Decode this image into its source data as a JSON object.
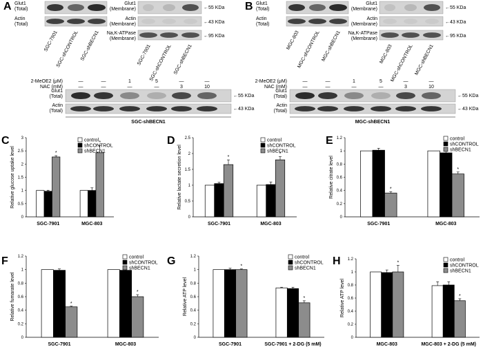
{
  "blots": {
    "A": {
      "panel_label": "A",
      "glut1_total": "Glut1\n(Total)",
      "actin_total": "Actin\n(Total)",
      "glut1_membrane": "Glut1\n(Membrane)",
      "actin_membrane": "Actin\n(Membrane)",
      "nak_membrane": "Na,K-ATPase\n(Membrane)",
      "lanes": [
        "SGC-7901",
        "SGC-shCONTROL",
        "SGC-shBECN1"
      ],
      "markers": [
        "55 KDa",
        "43 KDa",
        "95 KDa"
      ]
    },
    "B": {
      "panel_label": "B",
      "glut1_total": "Glut1\n(Total)",
      "actin_total": "Actin\n(Total)",
      "glut1_membrane": "Glut1\n(Membrane)",
      "actin_membrane": "Actin\n(Membrane)",
      "nak_membrane": "Na,K-ATPase\n(Membrane)",
      "lanes": [
        "MGC-803",
        "MGC-shCONTROL",
        "MGC-shBECN1"
      ],
      "markers": [
        "55 KDa",
        "43 KDa",
        "95 KDa"
      ]
    },
    "treatment": {
      "meoe2_label": "2-MeOE2 (μM)",
      "nac_label": "NAC (mM)",
      "meoe2_values": [
        "—",
        "—",
        "1",
        "5",
        "—",
        "—"
      ],
      "nac_values": [
        "—",
        "—",
        "—",
        "—",
        "3",
        "10"
      ],
      "glut1": "Glut1\n(Total)",
      "actin": "Actin\n(Total)",
      "markers": [
        "55 KDa",
        "43 KDa"
      ],
      "left_caption": "SGC-shBECN1",
      "right_caption": "MGC-shBECN1"
    }
  },
  "legend": [
    "control",
    "shCONTROL",
    "shBECN1"
  ],
  "colors": {
    "control": "#ffffff",
    "shCONTROL": "#000000",
    "shBECN1": "#8c8c8c"
  },
  "chart_data": [
    {
      "panel": "C",
      "type": "bar",
      "ylabel": "Relative glucose uptake level",
      "categories": [
        "SGC-7901",
        "MGC-803"
      ],
      "ylim": [
        0,
        3
      ],
      "yticks": [
        0,
        0.5,
        1,
        1.5,
        2,
        2.5,
        3
      ],
      "series": [
        {
          "name": "control",
          "values": [
            1,
            1
          ],
          "errors": [
            0,
            0
          ]
        },
        {
          "name": "shCONTROL",
          "values": [
            0.97,
            1.0
          ],
          "errors": [
            0.04,
            0.1
          ]
        },
        {
          "name": "shBECN1",
          "values": [
            2.27,
            2.43
          ],
          "errors": [
            0.05,
            0.28
          ]
        }
      ],
      "significance": [
        "",
        "",
        "*"
      ]
    },
    {
      "panel": "D",
      "type": "bar",
      "ylabel": "Relative lactate secretion level",
      "categories": [
        "SGC-7901",
        "MGC-803"
      ],
      "ylim": [
        0,
        2.5
      ],
      "yticks": [
        0,
        0.5,
        1,
        1.5,
        2,
        2.5
      ],
      "series": [
        {
          "name": "control",
          "values": [
            1,
            1
          ],
          "errors": [
            0,
            0
          ]
        },
        {
          "name": "shCONTROL",
          "values": [
            1.05,
            1.02
          ],
          "errors": [
            0.04,
            0.08
          ]
        },
        {
          "name": "shBECN1",
          "values": [
            1.65,
            1.8
          ],
          "errors": [
            0.15,
            0.1
          ]
        }
      ],
      "significance": [
        "",
        "",
        "*"
      ]
    },
    {
      "panel": "E",
      "type": "bar",
      "ylabel": "Relative citrate level",
      "categories": [
        "SGC-7901",
        "MGC-803"
      ],
      "ylim": [
        0,
        1.2
      ],
      "yticks": [
        0,
        0.2,
        0.4,
        0.6,
        0.8,
        1,
        1.2
      ],
      "series": [
        {
          "name": "control",
          "values": [
            1,
            1
          ],
          "errors": [
            0,
            0
          ]
        },
        {
          "name": "shCONTROL",
          "values": [
            1.01,
            0.97
          ],
          "errors": [
            0.03,
            0.04
          ]
        },
        {
          "name": "shBECN1",
          "values": [
            0.36,
            0.65
          ],
          "errors": [
            0.02,
            0.03
          ]
        }
      ],
      "significance": [
        "",
        "",
        "*"
      ]
    },
    {
      "panel": "F",
      "type": "bar",
      "ylabel": "Relative fumarate level",
      "categories": [
        "SGC-7901",
        "MGC-803"
      ],
      "ylim": [
        0,
        1.2
      ],
      "yticks": [
        0,
        0.2,
        0.4,
        0.6,
        0.8,
        1,
        1.2
      ],
      "series": [
        {
          "name": "control",
          "values": [
            1,
            1
          ],
          "errors": [
            0,
            0
          ]
        },
        {
          "name": "shCONTROL",
          "values": [
            0.99,
            0.99
          ],
          "errors": [
            0.02,
            0.02
          ]
        },
        {
          "name": "shBECN1",
          "values": [
            0.45,
            0.6
          ],
          "errors": [
            0.01,
            0.03
          ]
        }
      ],
      "significance": [
        "",
        "",
        "*"
      ]
    },
    {
      "panel": "G",
      "type": "bar",
      "ylabel": "Relative ATP level",
      "categories": [
        "SGC-7901",
        "SGC-7901 + 2-DG (5 mM)"
      ],
      "ylim": [
        0,
        1.2
      ],
      "yticks": [
        0,
        0.2,
        0.4,
        0.6,
        0.8,
        1,
        1.2
      ],
      "series": [
        {
          "name": "control",
          "values": [
            1,
            0.73
          ],
          "errors": [
            0,
            0.01
          ]
        },
        {
          "name": "shCONTROL",
          "values": [
            1.0,
            0.72
          ],
          "errors": [
            0.02,
            0.02
          ]
        },
        {
          "name": "shBECN1",
          "values": [
            1.0,
            0.51
          ],
          "errors": [
            0.01,
            0.03
          ]
        }
      ],
      "significance": [
        "",
        "",
        "*"
      ]
    },
    {
      "panel": "H",
      "type": "bar",
      "ylabel": "Relative ATP level",
      "categories": [
        "MGC-803",
        "MGC-803 + 2-DG (5 mM)"
      ],
      "ylim": [
        0,
        1.2
      ],
      "yticks": [
        0,
        0.2,
        0.4,
        0.6,
        0.8,
        1,
        1.2
      ],
      "series": [
        {
          "name": "control",
          "values": [
            1,
            0.79
          ],
          "errors": [
            0,
            0.06
          ]
        },
        {
          "name": "shCONTROL",
          "values": [
            0.99,
            0.8
          ],
          "errors": [
            0.04,
            0.05
          ]
        },
        {
          "name": "shBECN1",
          "values": [
            1.0,
            0.56
          ],
          "errors": [
            0.1,
            0.03
          ]
        }
      ],
      "significance": [
        "",
        "",
        "*"
      ]
    }
  ]
}
